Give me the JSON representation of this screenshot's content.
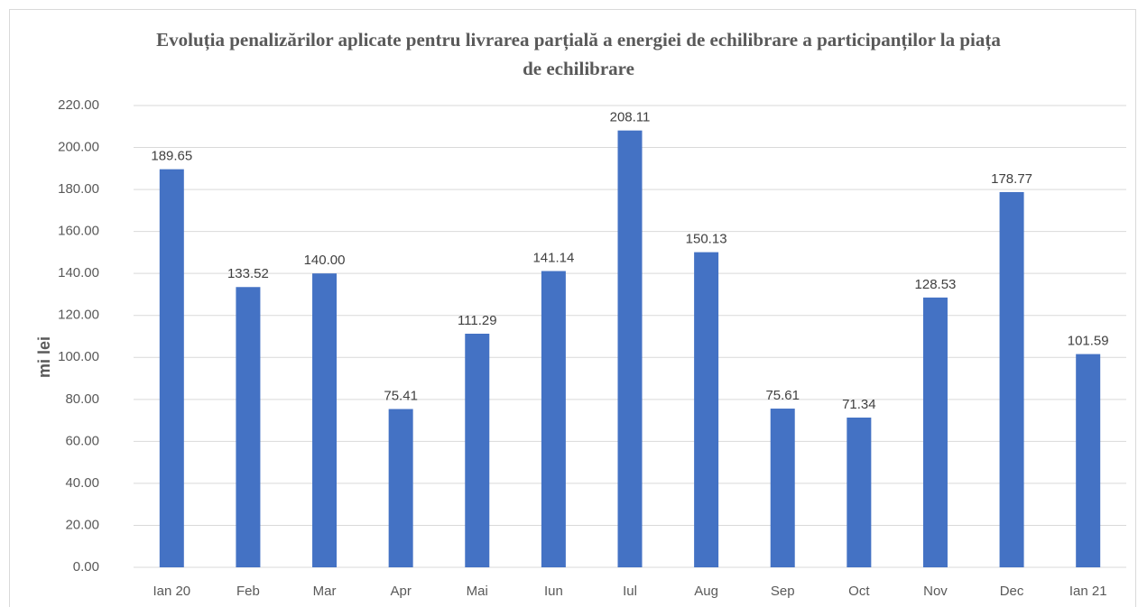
{
  "chart_data": {
    "type": "bar",
    "title": "Evoluția penalizărilor aplicate pentru livrarea parțială a energiei de echilibrare a participanților la piața de echilibrare",
    "y_label": "mi lei",
    "categories": [
      "Ian 20",
      "Feb",
      "Mar",
      "Apr",
      "Mai",
      "Iun",
      "Iul",
      "Aug",
      "Sep",
      "Oct",
      "Nov",
      "Dec",
      "Ian 21"
    ],
    "values": [
      189.65,
      133.52,
      140,
      75.41,
      111.29,
      141.14,
      208.11,
      150.13,
      75.61,
      71.34,
      128.53,
      178.77,
      101.59
    ],
    "value_labels": [
      "189.65",
      "133.52",
      "140.00",
      "75.41",
      "111.29",
      "141.14",
      "208.11",
      "150.13",
      "75.61",
      "71.34",
      "128.53",
      "178.77",
      "101.59"
    ],
    "color": "#4472c4",
    "ylim": [
      0,
      220
    ],
    "yticks": [
      {
        "value": 0,
        "label": "0.00"
      },
      {
        "value": 20,
        "label": "20.00"
      },
      {
        "value": 40,
        "label": "40.00"
      },
      {
        "value": 60,
        "label": "60.00"
      },
      {
        "value": 80,
        "label": "80.00"
      },
      {
        "value": 100,
        "label": "100.00"
      },
      {
        "value": 120,
        "label": "120.00"
      },
      {
        "value": 140,
        "label": "140.00"
      },
      {
        "value": 160,
        "label": "160.00"
      },
      {
        "value": 180,
        "label": "180.00"
      },
      {
        "value": 200,
        "label": "200.00"
      },
      {
        "value": 220,
        "label": "220.00"
      }
    ],
    "grid": true
  }
}
